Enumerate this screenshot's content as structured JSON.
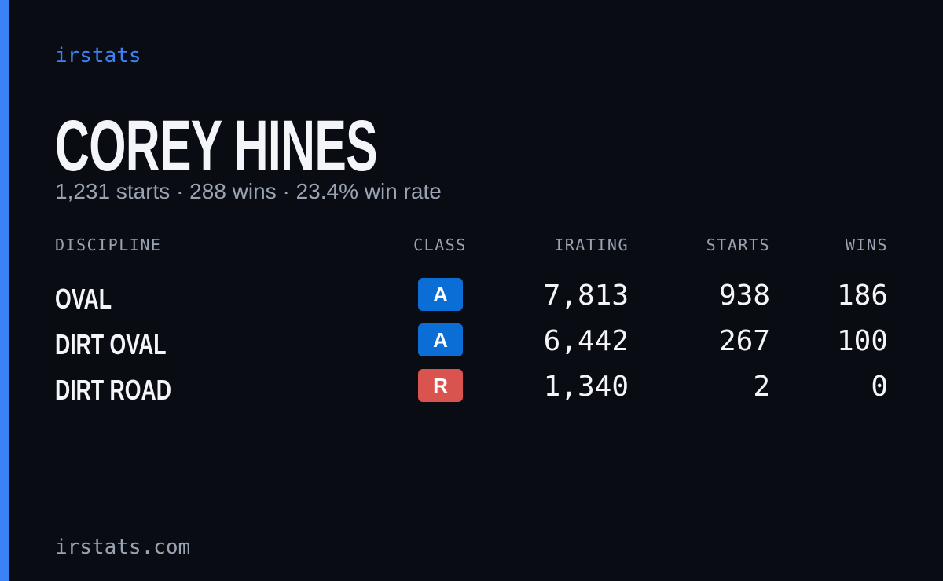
{
  "brand": "irstats",
  "header": {
    "title": "COREY HINES",
    "subtitle": "1,231 starts · 288 wins · 23.4% win rate"
  },
  "table": {
    "columns": [
      "DISCIPLINE",
      "CLASS",
      "IRATING",
      "STARTS",
      "WINS"
    ],
    "rows": [
      {
        "discipline": "OVAL",
        "class": "A",
        "class_color": "#0a6ed6",
        "irating": "7,813",
        "starts": "938",
        "wins": "186"
      },
      {
        "discipline": "DIRT OVAL",
        "class": "A",
        "class_color": "#0a6ed6",
        "irating": "6,442",
        "starts": "267",
        "wins": "100"
      },
      {
        "discipline": "DIRT ROAD",
        "class": "R",
        "class_color": "#d9534f",
        "irating": "1,340",
        "starts": "2",
        "wins": "0"
      }
    ]
  },
  "footer": "irstats.com"
}
